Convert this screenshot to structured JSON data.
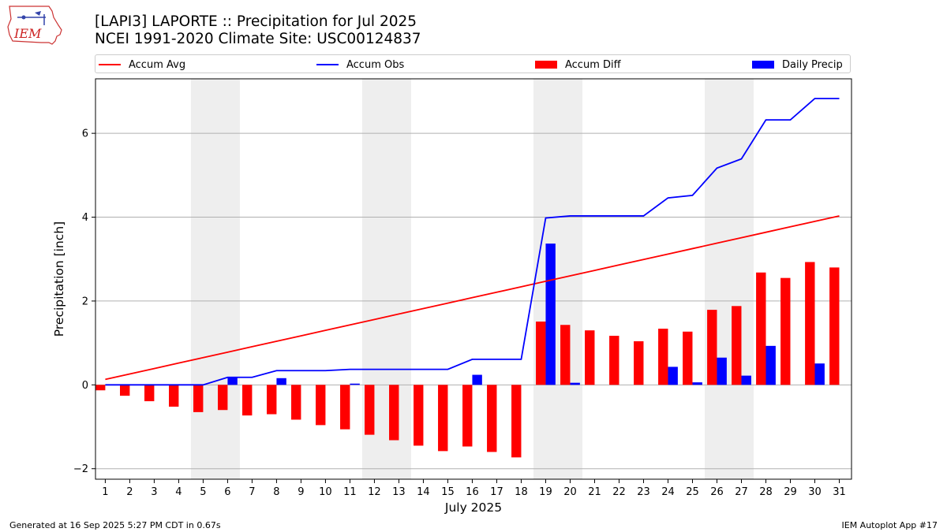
{
  "header": {
    "title": "[LAPI3] LAPORTE :: Precipitation for Jul 2025",
    "subtitle": "NCEI 1991-2020 Climate Site: USC00124837"
  },
  "logo": {
    "text": "IEM"
  },
  "footer": {
    "left": "Generated at 16 Sep 2025 5:27 PM CDT in 0.67s",
    "right": "IEM Autoplot App #17"
  },
  "colors": {
    "accum_avg": "#ff0000",
    "accum_obs": "#0000ff",
    "accum_diff": "#ff0000",
    "daily_precip": "#0000ff",
    "weekend_shade": "#eeeeee",
    "grid": "#b0b0b0"
  },
  "chart_data": {
    "type": "bar",
    "xlabel": "July 2025",
    "ylabel": "Precipitation [inch]",
    "xlim": [
      0.6,
      31.5
    ],
    "ylim": [
      -2.25,
      7.3
    ],
    "yticks": [
      -2,
      0,
      2,
      4,
      6
    ],
    "grid": "horizontal",
    "legend_position": "top",
    "days": [
      1,
      2,
      3,
      4,
      5,
      6,
      7,
      8,
      9,
      10,
      11,
      12,
      13,
      14,
      15,
      16,
      17,
      18,
      19,
      20,
      21,
      22,
      23,
      24,
      25,
      26,
      27,
      28,
      29,
      30,
      31
    ],
    "weekend_shading": [
      [
        5,
        6
      ],
      [
        12,
        13
      ],
      [
        19,
        20
      ],
      [
        26,
        27
      ]
    ],
    "series": [
      {
        "name": "Accum Avg",
        "kind": "line",
        "values": [
          0.13,
          0.26,
          0.39,
          0.52,
          0.65,
          0.78,
          0.91,
          1.04,
          1.17,
          1.3,
          1.43,
          1.56,
          1.69,
          1.82,
          1.95,
          2.08,
          2.21,
          2.34,
          2.47,
          2.6,
          2.73,
          2.86,
          2.99,
          3.12,
          3.25,
          3.38,
          3.51,
          3.64,
          3.77,
          3.9,
          4.03
        ]
      },
      {
        "name": "Accum Obs",
        "kind": "line",
        "values": [
          0.0,
          0.0,
          0.0,
          0.0,
          0.0,
          0.18,
          0.18,
          0.34,
          0.34,
          0.34,
          0.37,
          0.37,
          0.37,
          0.37,
          0.37,
          0.61,
          0.61,
          0.61,
          3.98,
          4.03,
          4.03,
          4.03,
          4.03,
          4.46,
          4.52,
          5.17,
          5.39,
          6.32,
          6.32,
          6.83,
          6.83
        ]
      },
      {
        "name": "Accum Diff",
        "kind": "bar",
        "values": [
          -0.13,
          -0.26,
          -0.39,
          -0.52,
          -0.65,
          -0.6,
          -0.73,
          -0.7,
          -0.83,
          -0.96,
          -1.06,
          -1.19,
          -1.32,
          -1.45,
          -1.58,
          -1.47,
          -1.6,
          -1.73,
          1.51,
          1.43,
          1.3,
          1.17,
          1.04,
          1.34,
          1.27,
          1.79,
          1.88,
          2.68,
          2.55,
          2.93,
          2.8
        ]
      },
      {
        "name": "Daily Precip",
        "kind": "bar",
        "values": [
          0.0,
          0.0,
          0.0,
          0.0,
          0.0,
          0.18,
          0.0,
          0.16,
          0.0,
          0.0,
          0.03,
          0.0,
          0.0,
          0.0,
          0.0,
          0.24,
          0.0,
          0.0,
          3.37,
          0.05,
          0.0,
          0.0,
          0.0,
          0.43,
          0.06,
          0.65,
          0.22,
          0.93,
          0.0,
          0.51,
          0.0
        ]
      }
    ]
  }
}
